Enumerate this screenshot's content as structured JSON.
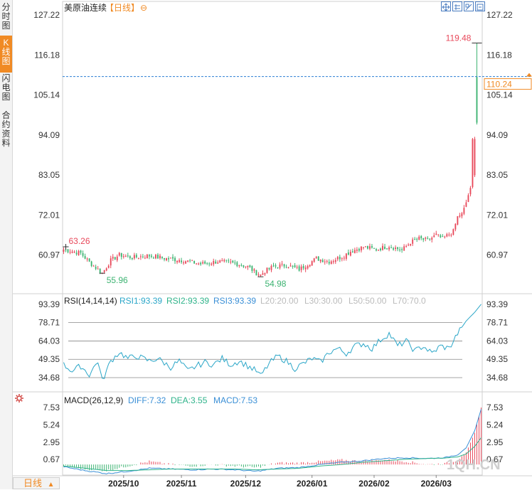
{
  "sidebar": {
    "tabs": [
      {
        "label": "分\n时\n图",
        "active": false
      },
      {
        "label": "K\n线\n图",
        "active": true
      },
      {
        "label": "闪\n电\n图",
        "active": false
      },
      {
        "label": "合\n约\n资\n料",
        "active": false
      }
    ]
  },
  "header": {
    "instrument": "美原油连续",
    "period_tag": "【日线】",
    "toggle_symbol": "⊖"
  },
  "bottom_tab": {
    "label": "日线",
    "arrow": "▲"
  },
  "watermark": "1QH.CN",
  "price_panel": {
    "last_price_label": "110.24",
    "high_label": "119.48",
    "annotations": [
      "63.26",
      "55.96",
      "54.98"
    ]
  },
  "rsi_panel": {
    "title": "RSI(14,14,14)",
    "rsi1": "RSI1:93.39",
    "rsi2": "RSI2:93.39",
    "rsi3": "RSI3:93.39",
    "levels": [
      "L20:20.00",
      "L30:30.00",
      "L50:50.00",
      "L70:70.0"
    ]
  },
  "macd_panel": {
    "title": "MACD(26,12,9)",
    "diff": "DIFF:7.32",
    "dea": "DEA:3.55",
    "macd": "MACD:7.53"
  },
  "colors": {
    "up": "#e8485a",
    "down": "#3cb371",
    "rsi_line": "#2aa6c8",
    "dif": "#3a8fd6",
    "dea": "#2fb38a",
    "accent": "#f08a24",
    "last_price_line": "#2a7fd4"
  },
  "chart_data": [
    {
      "type": "candlestick",
      "title": "美原油连续【日线】",
      "y_ticks": [
        127.22,
        116.18,
        105.14,
        94.09,
        83.05,
        72.01,
        60.97
      ],
      "ylim": [
        50.5,
        129
      ],
      "x_ticks": [
        "2025/10",
        "2025/11",
        "2025/12",
        "2026/01",
        "2026/02",
        "2026/03"
      ],
      "last_price": 110.24,
      "annotated_high": 119.48,
      "annotated_lows": [
        63.26,
        55.96,
        54.98
      ],
      "close_path": [
        [
          0,
          62.5
        ],
        [
          8,
          61.5
        ],
        [
          12,
          59.0
        ],
        [
          16,
          57.0
        ],
        [
          18,
          55.96
        ],
        [
          22,
          59.5
        ],
        [
          26,
          61.0
        ],
        [
          32,
          60.3
        ],
        [
          40,
          60.8
        ],
        [
          48,
          60.0
        ],
        [
          56,
          59.5
        ],
        [
          64,
          58.5
        ],
        [
          72,
          59.2
        ],
        [
          80,
          58.7
        ],
        [
          86,
          57.8
        ],
        [
          90,
          56.0
        ],
        [
          92,
          55.5
        ],
        [
          94,
          56.5
        ],
        [
          98,
          57.8
        ],
        [
          104,
          58.2
        ],
        [
          110,
          57.0
        ],
        [
          114,
          58.5
        ],
        [
          118,
          60.0
        ],
        [
          124,
          59.2
        ],
        [
          130,
          60.5
        ],
        [
          134,
          62.0
        ],
        [
          140,
          63.2
        ],
        [
          146,
          62.5
        ],
        [
          152,
          63.5
        ],
        [
          158,
          62.3
        ],
        [
          162,
          64.5
        ],
        [
          166,
          65.5
        ],
        [
          170,
          65.0
        ],
        [
          174,
          66.5
        ],
        [
          177,
          65.5
        ],
        [
          182,
          67.5
        ],
        [
          184,
          71.5
        ],
        [
          186,
          72.5
        ],
        [
          188,
          75.5
        ],
        [
          190,
          79.5
        ],
        [
          191,
          93.0
        ],
        [
          192,
          97.5
        ],
        [
          193,
          110.0
        ]
      ]
    },
    {
      "type": "line",
      "title": "RSI(14,14,14)",
      "y_ticks": [
        93.39,
        78.71,
        64.03,
        49.35,
        34.68
      ],
      "ylim": [
        25,
        95
      ],
      "reference_lines": [
        78.71,
        64.03,
        49.35,
        34.68
      ],
      "series": [
        {
          "name": "RSI1",
          "last": 93.39
        },
        {
          "name": "RSI2",
          "last": 93.39
        },
        {
          "name": "RSI3",
          "last": 93.39
        }
      ],
      "path": [
        [
          0,
          45
        ],
        [
          4,
          40
        ],
        [
          8,
          44
        ],
        [
          12,
          37
        ],
        [
          16,
          48
        ],
        [
          18,
          32
        ],
        [
          22,
          48
        ],
        [
          26,
          55
        ],
        [
          30,
          50
        ],
        [
          34,
          52
        ],
        [
          40,
          48
        ],
        [
          44,
          50
        ],
        [
          50,
          43
        ],
        [
          54,
          48
        ],
        [
          58,
          40
        ],
        [
          62,
          44
        ],
        [
          66,
          47
        ],
        [
          70,
          45
        ],
        [
          74,
          50
        ],
        [
          78,
          45
        ],
        [
          82,
          48
        ],
        [
          86,
          44
        ],
        [
          90,
          40
        ],
        [
          92,
          36
        ],
        [
          96,
          46
        ],
        [
          100,
          52
        ],
        [
          104,
          48
        ],
        [
          108,
          42
        ],
        [
          112,
          46
        ],
        [
          116,
          50
        ],
        [
          120,
          47
        ],
        [
          124,
          55
        ],
        [
          128,
          58
        ],
        [
          132,
          54
        ],
        [
          136,
          60
        ],
        [
          140,
          62
        ],
        [
          144,
          58
        ],
        [
          148,
          65
        ],
        [
          152,
          70
        ],
        [
          156,
          60
        ],
        [
          160,
          64
        ],
        [
          164,
          56
        ],
        [
          168,
          60
        ],
        [
          172,
          54
        ],
        [
          176,
          60
        ],
        [
          180,
          58
        ],
        [
          184,
          70
        ],
        [
          188,
          80
        ],
        [
          192,
          87
        ],
        [
          195,
          93.39
        ]
      ]
    },
    {
      "type": "bar",
      "title": "MACD(26,12,9)",
      "y_ticks": [
        7.53,
        5.24,
        2.95,
        0.67
      ],
      "ylim": [
        -1.4,
        8.3
      ],
      "series": [
        {
          "name": "DIFF",
          "last": 7.32
        },
        {
          "name": "DEA",
          "last": 3.55
        },
        {
          "name": "MACD",
          "last": 7.53
        }
      ],
      "dif_path": [
        [
          0,
          -0.3
        ],
        [
          10,
          -0.8
        ],
        [
          20,
          -1.2
        ],
        [
          30,
          -0.9
        ],
        [
          40,
          -0.5
        ],
        [
          50,
          -0.6
        ],
        [
          60,
          -0.7
        ],
        [
          70,
          -0.6
        ],
        [
          80,
          -0.7
        ],
        [
          90,
          -0.9
        ],
        [
          100,
          -0.5
        ],
        [
          110,
          -0.4
        ],
        [
          120,
          0.0
        ],
        [
          130,
          0.3
        ],
        [
          140,
          0.5
        ],
        [
          150,
          0.8
        ],
        [
          160,
          0.9
        ],
        [
          170,
          0.8
        ],
        [
          178,
          0.9
        ],
        [
          184,
          1.3
        ],
        [
          188,
          2.2
        ],
        [
          192,
          4.5
        ],
        [
          195,
          7.32
        ]
      ],
      "dea_path": [
        [
          0,
          -0.2
        ],
        [
          10,
          -0.5
        ],
        [
          20,
          -0.8
        ],
        [
          30,
          -0.8
        ],
        [
          40,
          -0.7
        ],
        [
          50,
          -0.6
        ],
        [
          60,
          -0.6
        ],
        [
          70,
          -0.6
        ],
        [
          80,
          -0.6
        ],
        [
          90,
          -0.7
        ],
        [
          100,
          -0.6
        ],
        [
          110,
          -0.5
        ],
        [
          120,
          -0.2
        ],
        [
          130,
          0.0
        ],
        [
          140,
          0.3
        ],
        [
          150,
          0.5
        ],
        [
          160,
          0.7
        ],
        [
          170,
          0.8
        ],
        [
          178,
          0.85
        ],
        [
          184,
          1.0
        ],
        [
          188,
          1.4
        ],
        [
          192,
          2.4
        ],
        [
          195,
          3.55
        ]
      ]
    }
  ]
}
